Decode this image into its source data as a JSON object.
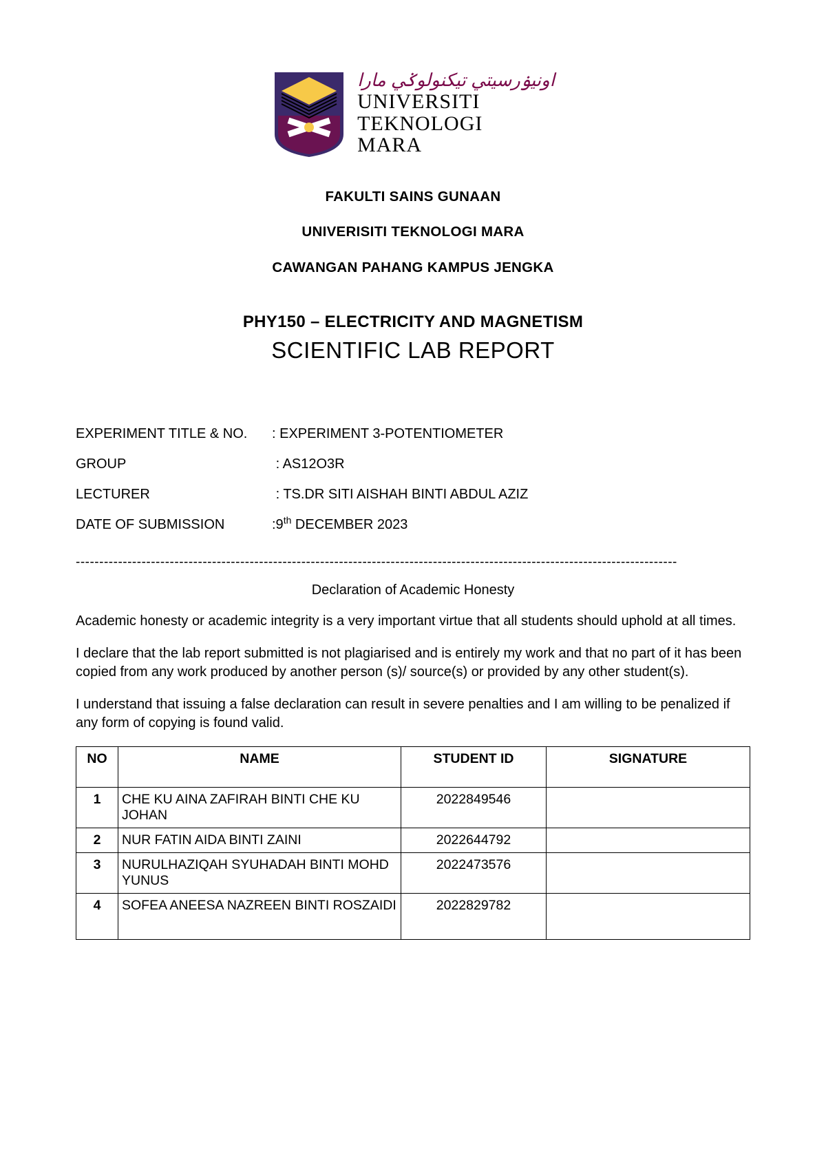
{
  "logo": {
    "jawi_text": "اونيۏرسيتي تيكنولوݢي مارا",
    "line1": "UNIVERSITI",
    "line2": "TEKNOLOGI",
    "line3": "MARA",
    "shield_colors": {
      "bg": "#3b2a6b",
      "crest": "#6a1351",
      "diamond": "#f7c948",
      "lines": "#000000",
      "x_color": "#ffffff"
    }
  },
  "header": {
    "line1": "FAKULTI SAINS GUNAAN",
    "line2": "UNIVERISITI TEKNOLOGI MARA",
    "line3": "CAWANGAN PAHANG KAMPUS JENGKA"
  },
  "course": "PHY150 – ELECTRICITY AND MAGNETISM",
  "report_title": "SCIENTIFIC LAB REPORT",
  "fields": {
    "experiment": {
      "label": "EXPERIMENT TITLE & NO.",
      "value": ": EXPERIMENT 3-POTENTIOMETER"
    },
    "group": {
      "label": "GROUP",
      "value": ": AS12O3R"
    },
    "lecturer": {
      "label": "LECTURER",
      "value": ": TS.DR SITI AISHAH BINTI ABDUL AZIZ"
    },
    "date": {
      "label": "DATE OF SUBMISSION",
      "prefix": ":9",
      "sup": "th",
      "suffix": " DECEMBER 2023"
    }
  },
  "declaration": {
    "title": "Declaration of Academic Honesty",
    "p1": "Academic honesty or academic integrity is a very important virtue that all students should uphold at all times.",
    "p2": "I declare that the lab report submitted is not plagiarised and is entirely my work and that no part of it has been copied from any work produced by another person (s)/ source(s) or provided by any other student(s).",
    "p3": "I understand that issuing a false declaration can result in severe penalties and I am willing to be penalized if any form of copying is found valid."
  },
  "table": {
    "headers": {
      "no": "NO",
      "name": "NAME",
      "id": "STUDENT ID",
      "sig": "SIGNATURE"
    },
    "rows": [
      {
        "no": "1",
        "name": "CHE KU AINA ZAFIRAH BINTI CHE KU JOHAN",
        "id": "2022849546",
        "sig": ""
      },
      {
        "no": "2",
        "name": "NUR FATIN AIDA BINTI ZAINI",
        "id": "2022644792",
        "sig": ""
      },
      {
        "no": "3",
        "name": "NURULHAZIQAH SYUHADAH BINTI MOHD YUNUS",
        "id": "2022473576",
        "sig": ""
      },
      {
        "no": "4",
        "name": "SOFEA ANEESA NAZREEN BINTI ROSZAIDI",
        "id": "2022829782",
        "sig": "",
        "tall": true
      }
    ]
  }
}
